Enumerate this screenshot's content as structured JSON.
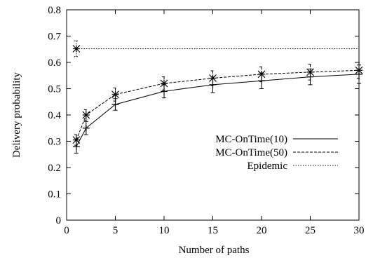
{
  "chart_data": {
    "type": "line",
    "xlabel": "Number of paths",
    "ylabel": "Delivery probability",
    "xlim": [
      0,
      30
    ],
    "ylim": [
      0,
      0.8
    ],
    "xticks": [
      0,
      5,
      10,
      15,
      20,
      25,
      30
    ],
    "yticks": [
      0,
      0.1,
      0.2,
      0.3,
      0.4,
      0.5,
      0.6,
      0.7,
      0.8
    ],
    "legend_position": "right",
    "grid": false,
    "series": [
      {
        "name": "MC-OnTime(10)",
        "line_style": "solid",
        "marker": "plus",
        "x": [
          1,
          2,
          5,
          10,
          15,
          20,
          25,
          30
        ],
        "y": [
          0.28,
          0.35,
          0.44,
          0.49,
          0.515,
          0.53,
          0.545,
          0.555
        ],
        "error": [
          0.025,
          0.025,
          0.022,
          0.025,
          0.03,
          0.03,
          0.03,
          0.035
        ]
      },
      {
        "name": "MC-OnTime(50)",
        "line_style": "dashed",
        "marker": "star",
        "x": [
          1,
          2,
          5,
          10,
          15,
          20,
          25,
          30
        ],
        "y": [
          0.305,
          0.4,
          0.478,
          0.52,
          0.54,
          0.555,
          0.563,
          0.57
        ],
        "error": [
          0.02,
          0.02,
          0.025,
          0.025,
          0.028,
          0.028,
          0.03,
          0.03
        ]
      },
      {
        "name": "Epidemic",
        "line_style": "dotted",
        "marker": "star",
        "x": [
          1,
          30
        ],
        "y": [
          0.652,
          0.652
        ],
        "error": [
          0.03,
          0
        ],
        "marker_points": [
          1
        ]
      }
    ]
  }
}
